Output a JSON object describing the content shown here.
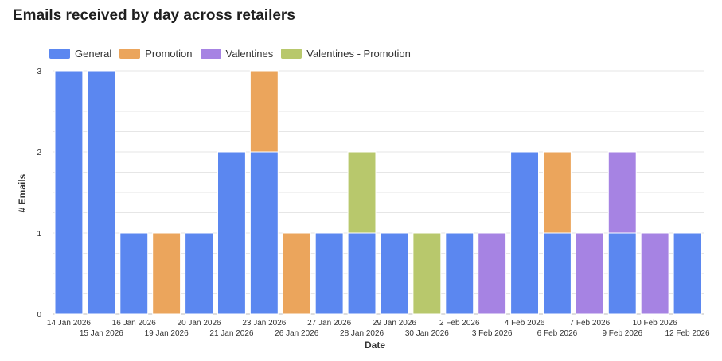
{
  "chart_data": {
    "type": "bar",
    "stacked": true,
    "title": "Emails received by day across retailers",
    "xlabel": "Date",
    "ylabel": "# Emails",
    "ylim": [
      0,
      3
    ],
    "yticks": [
      0,
      1,
      2,
      3
    ],
    "grid": true,
    "legend_position": "top-left",
    "categories": [
      "14 Jan 2026",
      "15 Jan 2026",
      "16 Jan 2026",
      "19 Jan 2026",
      "20 Jan 2026",
      "21 Jan 2026",
      "23 Jan 2026",
      "26 Jan 2026",
      "27 Jan 2026",
      "28 Jan 2026",
      "29 Jan 2026",
      "30 Jan 2026",
      "2 Feb 2026",
      "3 Feb 2026",
      "4 Feb 2026",
      "6 Feb 2026",
      "7 Feb 2026",
      "9 Feb 2026",
      "10 Feb 2026",
      "12 Feb 2026"
    ],
    "series": [
      {
        "name": "General",
        "color": "#5b87f0",
        "values": [
          3,
          3,
          1,
          0,
          1,
          2,
          2,
          0,
          1,
          1,
          1,
          0,
          1,
          0,
          2,
          1,
          0,
          1,
          0,
          1
        ]
      },
      {
        "name": "Promotion",
        "color": "#eba55c",
        "values": [
          0,
          0,
          0,
          1,
          0,
          0,
          1,
          1,
          0,
          0,
          0,
          0,
          0,
          0,
          0,
          1,
          0,
          0,
          0,
          0
        ]
      },
      {
        "name": "Valentines",
        "color": "#a683e3",
        "values": [
          0,
          0,
          0,
          0,
          0,
          0,
          0,
          0,
          0,
          0,
          0,
          0,
          0,
          1,
          0,
          0,
          1,
          1,
          1,
          0
        ]
      },
      {
        "name": "Valentines - Promotion",
        "color": "#b8c86c",
        "values": [
          0,
          0,
          0,
          0,
          0,
          0,
          0,
          0,
          0,
          1,
          0,
          1,
          0,
          0,
          0,
          0,
          0,
          0,
          0,
          0
        ]
      }
    ]
  }
}
